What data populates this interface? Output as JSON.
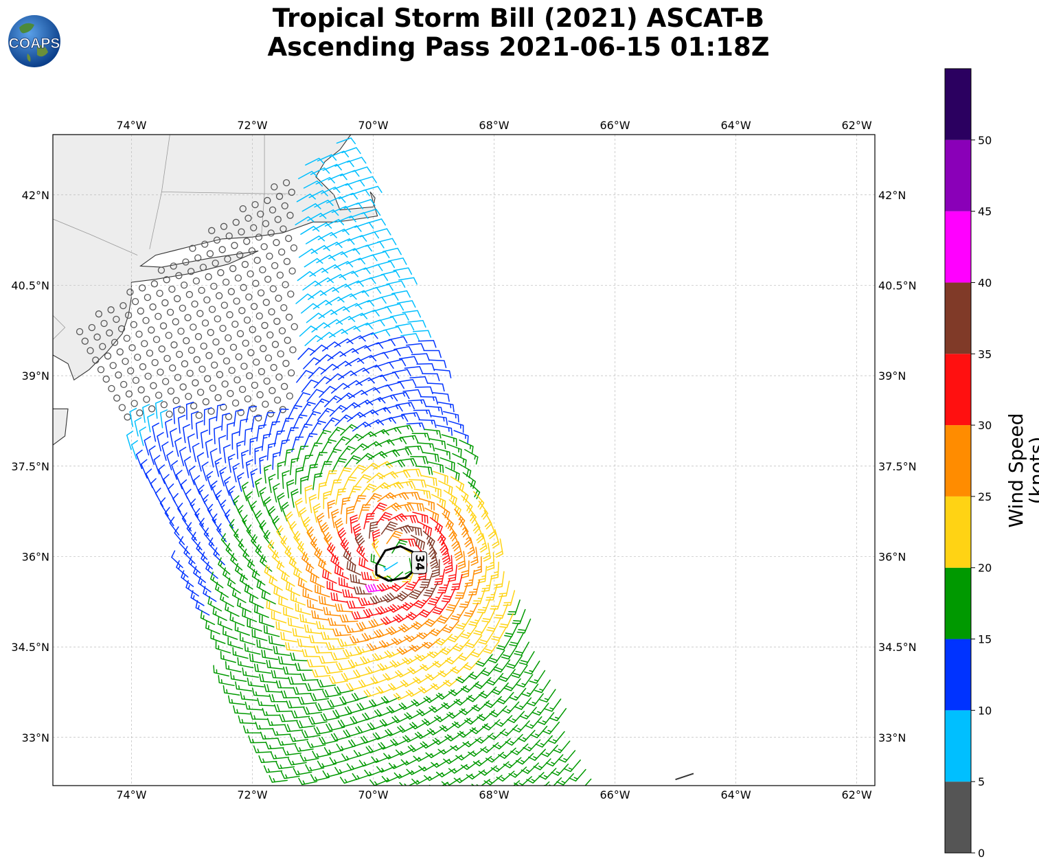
{
  "title": {
    "line1": "Tropical Storm Bill (2021) ASCAT-B",
    "line2": "Ascending Pass 2021-06-15 01:18Z"
  },
  "logo": {
    "text": "COAPS"
  },
  "map": {
    "lon_range": [
      -75.3,
      -61.7
    ],
    "lat_range": [
      32.2,
      43.0
    ],
    "lon_ticks": [
      "74°W",
      "72°W",
      "70°W",
      "68°W",
      "66°W",
      "64°W",
      "62°W"
    ],
    "lat_ticks": [
      "42°N",
      "40.5°N",
      "39°N",
      "37.5°N",
      "36°N",
      "34.5°N",
      "33°N"
    ],
    "lon_tick_values": [
      -74,
      -72,
      -70,
      -68,
      -66,
      -64,
      -62
    ],
    "lat_tick_values": [
      42,
      40.5,
      39,
      37.5,
      36,
      34.5,
      33
    ],
    "storm_center": {
      "lon": -69.6,
      "lat": 35.9
    },
    "contour_label": "34"
  },
  "colorbar": {
    "label": "Wind Speed (knots)",
    "ticks": [
      "0",
      "5",
      "10",
      "15",
      "20",
      "25",
      "30",
      "35",
      "40",
      "45",
      "50"
    ],
    "bins": [
      {
        "min": 0,
        "max": 5,
        "color": "#555555"
      },
      {
        "min": 5,
        "max": 10,
        "color": "#00bfff"
      },
      {
        "min": 10,
        "max": 15,
        "color": "#0033ff"
      },
      {
        "min": 15,
        "max": 20,
        "color": "#009900"
      },
      {
        "min": 20,
        "max": 25,
        "color": "#ffd314"
      },
      {
        "min": 25,
        "max": 30,
        "color": "#ff8c00"
      },
      {
        "min": 30,
        "max": 35,
        "color": "#ff1010"
      },
      {
        "min": 35,
        "max": 40,
        "color": "#803a28"
      },
      {
        "min": 40,
        "max": 45,
        "color": "#ff00ff"
      },
      {
        "min": 45,
        "max": 50,
        "color": "#8a00b8"
      },
      {
        "min": 50,
        "max": 55,
        "color": "#2b0060"
      }
    ]
  }
}
